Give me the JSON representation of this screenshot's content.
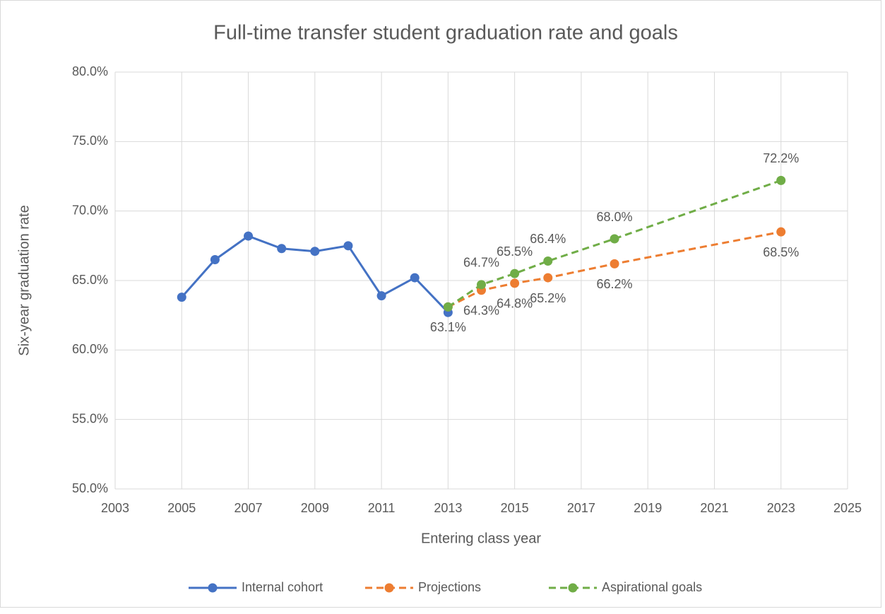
{
  "chart_data": {
    "type": "line",
    "title": "Full-time transfer student graduation rate and goals",
    "xlabel": "Entering class year",
    "ylabel": "Six-year graduation rate",
    "xlim": [
      2003,
      2025
    ],
    "xticks": [
      2003,
      2005,
      2007,
      2009,
      2011,
      2013,
      2015,
      2017,
      2019,
      2021,
      2023,
      2025
    ],
    "ylim": [
      50,
      80
    ],
    "yticks": [
      {
        "value": 50,
        "label": "50.0%"
      },
      {
        "value": 55,
        "label": "55.0%"
      },
      {
        "value": 60,
        "label": "60.0%"
      },
      {
        "value": 65,
        "label": "65.0%"
      },
      {
        "value": 70,
        "label": "70.0%"
      },
      {
        "value": 75,
        "label": "75.0%"
      },
      {
        "value": 80,
        "label": "80.0%"
      }
    ],
    "grid": true,
    "legend": "bottom",
    "series": [
      {
        "name": "Internal cohort",
        "color": "#4472c4",
        "line_style": "solid",
        "x": [
          2005,
          2006,
          2007,
          2008,
          2009,
          2010,
          2011,
          2012,
          2013
        ],
        "values": [
          63.8,
          66.5,
          68.2,
          67.3,
          67.1,
          67.5,
          63.9,
          65.2,
          62.7
        ]
      },
      {
        "name": "Projections",
        "color": "#ed7d31",
        "line_style": "dashed",
        "label_side": "below",
        "x": [
          2013,
          2014,
          2015,
          2016,
          2018,
          2023
        ],
        "values": [
          63.1,
          64.3,
          64.8,
          65.2,
          66.2,
          68.5
        ],
        "value_labels": [
          "63.1%",
          "64.3%",
          "64.8%",
          "65.2%",
          "66.2%",
          "68.5%"
        ]
      },
      {
        "name": "Aspirational goals",
        "color": "#70ad47",
        "line_style": "dashed",
        "label_side": "above",
        "x": [
          2013,
          2014,
          2015,
          2016,
          2018,
          2023
        ],
        "values": [
          63.1,
          64.7,
          65.5,
          66.4,
          68.0,
          72.2
        ],
        "value_labels": [
          null,
          "64.7%",
          "65.5%",
          "66.4%",
          "68.0%",
          "72.2%"
        ]
      }
    ]
  }
}
